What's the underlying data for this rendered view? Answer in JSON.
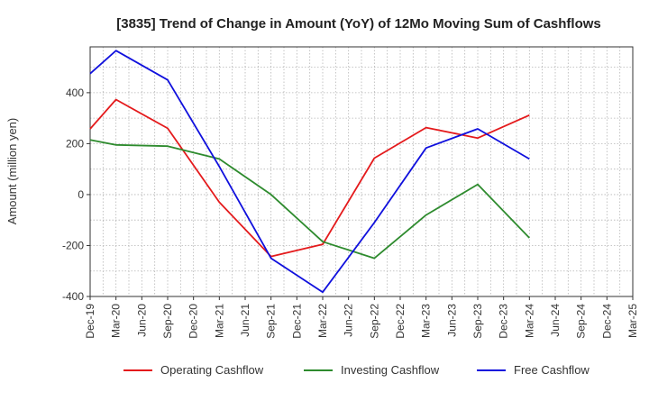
{
  "chart_data": {
    "type": "line",
    "title": "[3835]  Trend of Change in Amount (YoY) of 12Mo Moving Sum of Cashflows",
    "xlabel": "",
    "ylabel": "Amount (million yen)",
    "ylim": [
      -400,
      580
    ],
    "yticks": [
      -400,
      -200,
      0,
      200,
      400
    ],
    "grid": true,
    "legend_position": "bottom",
    "categories": [
      "Dec-19",
      "Mar-20",
      "Jun-20",
      "Sep-20",
      "Dec-20",
      "Mar-21",
      "Jun-21",
      "Sep-21",
      "Dec-21",
      "Mar-22",
      "Jun-22",
      "Sep-22",
      "Dec-22",
      "Mar-23",
      "Jun-23",
      "Sep-23",
      "Dec-23",
      "Mar-24",
      "Jun-24",
      "Sep-24",
      "Dec-24",
      "Mar-25"
    ],
    "series": [
      {
        "name": "Operating Cashflow",
        "color": "#e41a1c",
        "values": [
          258,
          373,
          null,
          260,
          null,
          -30,
          null,
          -243,
          null,
          -195,
          null,
          143,
          null,
          263,
          null,
          222,
          null,
          312,
          null,
          null,
          null,
          null
        ]
      },
      {
        "name": "Investing Cashflow",
        "color": "#2e8b2e",
        "values": [
          215,
          195,
          null,
          190,
          null,
          140,
          null,
          0,
          null,
          -185,
          null,
          -250,
          null,
          -80,
          null,
          40,
          null,
          -170,
          null,
          null,
          null,
          null
        ]
      },
      {
        "name": "Free Cashflow",
        "color": "#1010dd",
        "values": [
          475,
          565,
          null,
          450,
          null,
          110,
          null,
          -250,
          null,
          -383,
          null,
          -110,
          null,
          183,
          null,
          258,
          null,
          140,
          null,
          null,
          null,
          null
        ]
      }
    ]
  }
}
